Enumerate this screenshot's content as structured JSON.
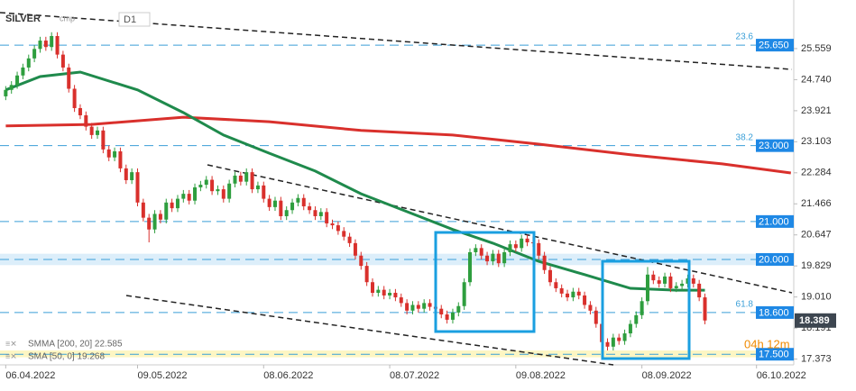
{
  "chart_data": {
    "type": "candlestick",
    "symbol": "SILVER",
    "mode": "cmp",
    "timeframe": "D1",
    "xlim": [
      -1,
      137.5
    ],
    "ylim": [
      17.22,
      26.65
    ],
    "xticks": [
      {
        "value": 0,
        "label": "06.04.2022"
      },
      {
        "value": 23,
        "label": "09.05.2022"
      },
      {
        "value": 45,
        "label": "08.06.2022"
      },
      {
        "value": 67,
        "label": "08.07.2022"
      },
      {
        "value": 89,
        "label": "09.08.2022"
      },
      {
        "value": 111,
        "label": "08.09.2022"
      },
      {
        "value": 131,
        "label": "06.10.2022"
      }
    ],
    "yticks": [
      25.559,
      {
        "value": 24.74,
        "label": "24.740"
      },
      23.921,
      23.103,
      22.284,
      21.466,
      20.647,
      19.829,
      {
        "value": 19.01,
        "label": "19.010"
      },
      18.191,
      17.373
    ],
    "up_color": "#2e9e3e",
    "down_color": "#d9302c",
    "ohlc": [
      [
        24.3,
        24.57,
        24.2,
        24.47
      ],
      [
        24.47,
        24.7,
        24.37,
        24.6
      ],
      [
        24.6,
        24.95,
        24.5,
        24.85
      ],
      [
        24.85,
        25.16,
        24.75,
        25.06
      ],
      [
        25.06,
        25.4,
        24.96,
        25.3
      ],
      [
        25.3,
        25.65,
        25.2,
        25.55
      ],
      [
        25.55,
        25.87,
        25.45,
        25.77
      ],
      [
        25.77,
        25.87,
        25.5,
        25.6
      ],
      [
        25.6,
        25.99,
        25.5,
        25.89
      ],
      [
        25.89,
        25.99,
        25.3,
        25.4
      ],
      [
        25.4,
        25.5,
        24.96,
        25.06
      ],
      [
        25.06,
        25.16,
        24.4,
        24.5
      ],
      [
        24.5,
        24.6,
        23.89,
        23.99
      ],
      [
        23.99,
        24.09,
        23.7,
        23.8
      ],
      [
        23.8,
        23.9,
        23.4,
        23.5
      ],
      [
        23.5,
        23.6,
        23.18,
        23.28
      ],
      [
        23.28,
        23.5,
        23.18,
        23.4
      ],
      [
        23.4,
        23.5,
        22.8,
        22.9
      ],
      [
        22.9,
        23.0,
        22.59,
        22.69
      ],
      [
        22.69,
        22.95,
        22.59,
        22.85
      ],
      [
        22.85,
        22.95,
        22.3,
        22.4
      ],
      [
        22.4,
        22.5,
        21.99,
        22.09
      ],
      [
        22.09,
        22.4,
        21.99,
        22.3
      ],
      [
        22.3,
        22.4,
        21.4,
        21.5
      ],
      [
        21.5,
        21.6,
        21.0,
        21.1
      ],
      [
        21.1,
        21.2,
        20.45,
        20.79
      ],
      [
        20.79,
        21.3,
        20.69,
        21.2
      ],
      [
        21.2,
        21.3,
        20.95,
        21.05
      ],
      [
        21.05,
        21.6,
        20.95,
        21.5
      ],
      [
        21.5,
        21.6,
        21.25,
        21.35
      ],
      [
        21.35,
        21.7,
        21.25,
        21.6
      ],
      [
        21.6,
        21.83,
        21.5,
        21.73
      ],
      [
        21.73,
        21.83,
        21.45,
        21.55
      ],
      [
        21.55,
        22.0,
        21.45,
        21.9
      ],
      [
        21.9,
        22.07,
        21.8,
        21.97
      ],
      [
        21.97,
        22.2,
        21.87,
        22.1
      ],
      [
        22.1,
        22.2,
        21.7,
        21.8
      ],
      [
        21.8,
        21.95,
        21.7,
        21.85
      ],
      [
        21.85,
        21.95,
        21.5,
        21.6
      ],
      [
        21.6,
        22.1,
        21.5,
        22.0
      ],
      [
        22.0,
        22.31,
        21.9,
        22.21
      ],
      [
        22.21,
        22.31,
        21.95,
        22.05
      ],
      [
        22.05,
        22.4,
        21.95,
        22.3
      ],
      [
        22.3,
        22.4,
        21.75,
        21.85
      ],
      [
        21.85,
        22.05,
        21.75,
        21.95
      ],
      [
        21.95,
        22.05,
        21.5,
        21.6
      ],
      [
        21.6,
        21.7,
        21.28,
        21.38
      ],
      [
        21.38,
        21.65,
        21.28,
        21.55
      ],
      [
        21.55,
        21.65,
        21.04,
        21.14
      ],
      [
        21.14,
        21.4,
        21.04,
        21.3
      ],
      [
        21.3,
        21.6,
        21.2,
        21.5
      ],
      [
        21.5,
        21.72,
        21.4,
        21.62
      ],
      [
        21.62,
        21.72,
        21.3,
        21.4
      ],
      [
        21.4,
        21.5,
        21.2,
        21.3
      ],
      [
        21.3,
        21.4,
        21.04,
        21.14
      ],
      [
        21.14,
        21.35,
        21.04,
        21.25
      ],
      [
        21.25,
        21.35,
        20.85,
        20.95
      ],
      [
        20.95,
        21.05,
        20.8,
        20.9
      ],
      [
        20.9,
        21.0,
        20.65,
        20.75
      ],
      [
        20.75,
        20.85,
        20.5,
        20.6
      ],
      [
        20.6,
        20.7,
        20.33,
        20.43
      ],
      [
        20.43,
        20.53,
        20.0,
        20.1
      ],
      [
        20.1,
        20.2,
        19.73,
        19.83
      ],
      [
        19.83,
        19.93,
        19.3,
        19.4
      ],
      [
        19.4,
        19.5,
        19.02,
        19.12
      ],
      [
        19.12,
        19.3,
        19.02,
        19.2
      ],
      [
        19.2,
        19.3,
        18.95,
        19.05
      ],
      [
        19.05,
        19.22,
        18.95,
        19.12
      ],
      [
        19.12,
        19.22,
        18.9,
        19.0
      ],
      [
        19.0,
        19.1,
        18.75,
        18.85
      ],
      [
        18.85,
        18.95,
        18.55,
        18.65
      ],
      [
        18.65,
        18.9,
        18.55,
        18.8
      ],
      [
        18.8,
        18.9,
        18.6,
        18.7
      ],
      [
        18.7,
        18.95,
        18.6,
        18.85
      ],
      [
        18.85,
        18.95,
        18.65,
        18.75
      ],
      [
        18.75,
        18.85,
        18.6,
        18.7
      ],
      [
        18.7,
        18.8,
        18.45,
        18.55
      ],
      [
        18.55,
        18.65,
        18.31,
        18.41
      ],
      [
        18.41,
        18.7,
        18.31,
        18.6
      ],
      [
        18.6,
        18.87,
        18.5,
        18.77
      ],
      [
        18.77,
        19.5,
        18.67,
        19.4
      ],
      [
        19.4,
        20.29,
        19.3,
        20.19
      ],
      [
        20.19,
        20.4,
        20.09,
        20.3
      ],
      [
        20.3,
        20.4,
        20.0,
        20.1
      ],
      [
        20.1,
        20.2,
        19.85,
        19.95
      ],
      [
        19.95,
        20.25,
        19.85,
        20.15
      ],
      [
        20.15,
        20.25,
        19.8,
        19.9
      ],
      [
        19.9,
        20.29,
        19.8,
        20.19
      ],
      [
        20.19,
        20.5,
        20.09,
        20.4
      ],
      [
        20.4,
        20.5,
        20.2,
        20.3
      ],
      [
        20.3,
        20.65,
        20.2,
        20.55
      ],
      [
        20.55,
        20.65,
        20.35,
        20.45
      ],
      [
        20.45,
        20.6,
        20.33,
        20.43
      ],
      [
        20.43,
        20.53,
        20.0,
        20.1
      ],
      [
        20.1,
        20.2,
        19.62,
        19.72
      ],
      [
        19.72,
        19.82,
        19.3,
        19.4
      ],
      [
        19.4,
        19.5,
        19.14,
        19.24
      ],
      [
        19.24,
        19.34,
        19.0,
        19.1
      ],
      [
        19.1,
        19.2,
        18.9,
        19.0
      ],
      [
        19.0,
        19.25,
        18.9,
        19.15
      ],
      [
        19.15,
        19.25,
        18.95,
        19.05
      ],
      [
        19.05,
        19.15,
        18.7,
        18.8
      ],
      [
        18.8,
        18.9,
        18.55,
        18.65
      ],
      [
        18.65,
        18.75,
        18.2,
        18.3
      ],
      [
        18.3,
        18.4,
        17.72,
        17.82
      ],
      [
        17.82,
        17.92,
        17.6,
        17.7
      ],
      [
        17.7,
        18.04,
        17.6,
        17.94
      ],
      [
        17.94,
        18.04,
        17.75,
        17.85
      ],
      [
        17.85,
        18.15,
        17.75,
        18.05
      ],
      [
        18.05,
        18.4,
        17.95,
        18.3
      ],
      [
        18.3,
        18.63,
        18.2,
        18.53
      ],
      [
        18.53,
        19.0,
        18.43,
        18.9
      ],
      [
        18.9,
        19.8,
        18.8,
        19.6
      ],
      [
        19.6,
        19.7,
        19.35,
        19.45
      ],
      [
        19.45,
        19.55,
        19.26,
        19.36
      ],
      [
        19.36,
        19.65,
        19.26,
        19.55
      ],
      [
        19.55,
        19.65,
        19.14,
        19.24
      ],
      [
        19.24,
        19.4,
        19.14,
        19.3
      ],
      [
        19.3,
        19.46,
        19.2,
        19.36
      ],
      [
        19.36,
        19.6,
        19.26,
        19.5
      ],
      [
        19.5,
        19.6,
        19.26,
        19.36
      ],
      [
        19.36,
        19.46,
        18.9,
        19.0
      ],
      [
        19.0,
        19.1,
        18.29,
        18.39
      ]
    ],
    "series": [
      {
        "name": "SMMA [200, 20] 22.585",
        "color": "#d9302c",
        "x": [
          0,
          15,
          31,
          46,
          62,
          78,
          93,
          109,
          125,
          137
        ],
        "values": [
          23.52,
          23.56,
          23.75,
          23.63,
          23.4,
          23.28,
          23.04,
          22.76,
          22.52,
          22.28
        ]
      },
      {
        "name": "SMA [50, 0] 19.268",
        "color": "#1f8a4c",
        "x": [
          0,
          6,
          13,
          23,
          31,
          38,
          46,
          54,
          62,
          70,
          78,
          85,
          93,
          101,
          109,
          117,
          122
        ],
        "values": [
          24.47,
          24.82,
          24.94,
          24.47,
          23.87,
          23.28,
          22.8,
          22.33,
          21.73,
          21.26,
          20.79,
          20.43,
          19.95,
          19.6,
          19.24,
          19.19,
          19.19
        ]
      }
    ],
    "zones": [
      {
        "low": 19.85,
        "high": 20.15,
        "color": "#dceefa"
      },
      {
        "low": 17.42,
        "high": 17.6,
        "color": "#fdf6c3"
      }
    ],
    "levels": [
      {
        "value": 25.65,
        "label": "25.650",
        "fib": "23.6"
      },
      {
        "value": 23.0,
        "label": "23.000",
        "fib": "38.2"
      },
      {
        "value": 21.0,
        "label": "21.000"
      },
      {
        "value": 20.0,
        "label": "20.000"
      },
      {
        "value": 18.6,
        "label": "18.600",
        "fib": "61.8"
      },
      {
        "value": 17.5,
        "label": "17.500"
      }
    ],
    "last_price": 18.389,
    "countdown": "04h 12m"
  }
}
